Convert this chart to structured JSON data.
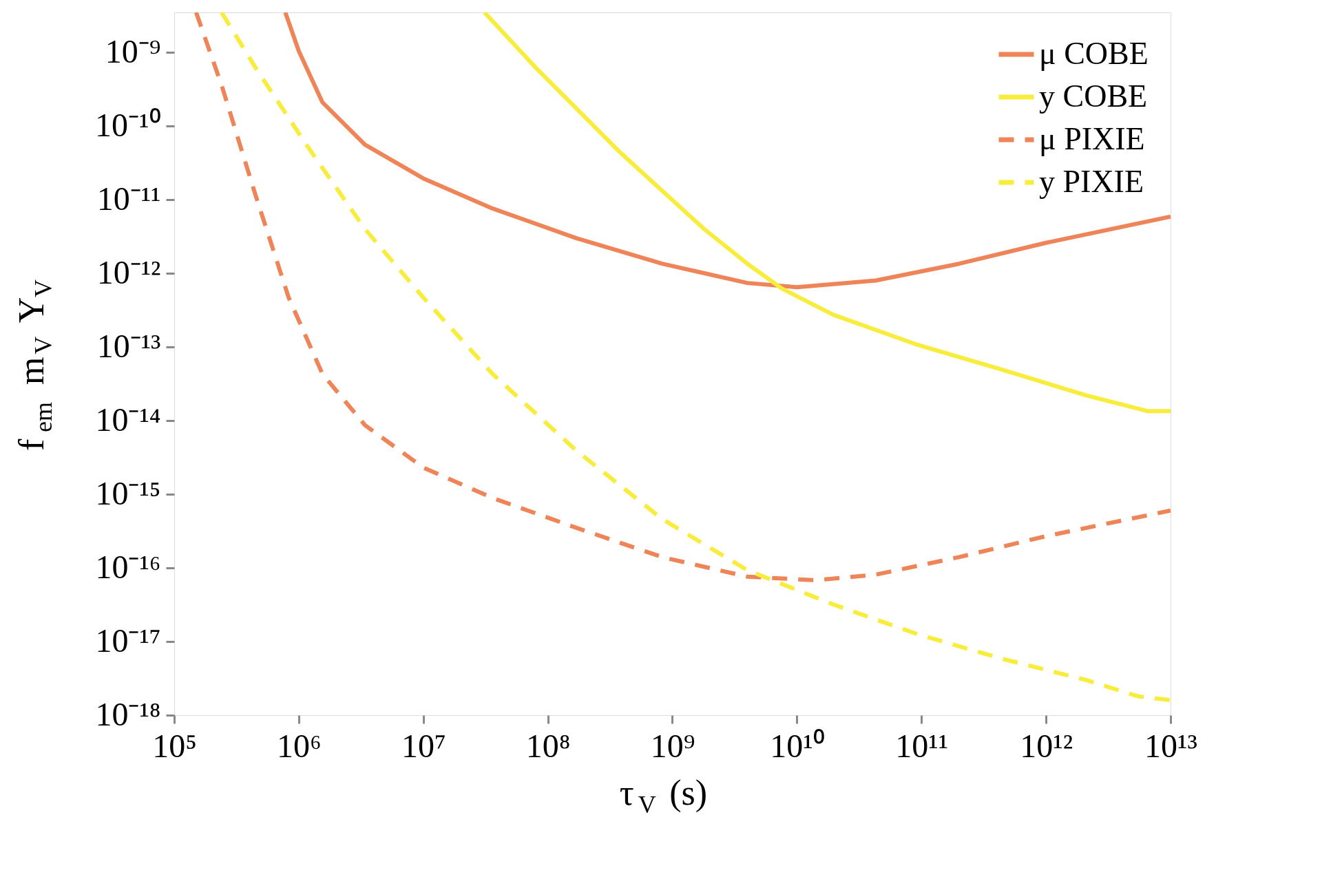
{
  "chart_data": {
    "type": "line",
    "xlabel": "τ$_{V}$ (s)",
    "ylabel": "f$_{em}$ m$_{V}$ Y$_{V}$",
    "log": "xy",
    "grid": false,
    "legend": "top right",
    "marker": "none",
    "xlim": [
      100000.0,
      10000000000000.0
    ],
    "ylim": [
      1e-18,
      3.5e-09
    ],
    "xticks": [
      {
        "value": 100000.0,
        "label": "10⁵"
      },
      {
        "value": 1000000.0,
        "label": "10⁶"
      },
      {
        "value": 10000000.0,
        "label": "10⁷"
      },
      {
        "value": 100000000.0,
        "label": "10⁸"
      },
      {
        "value": 1000000000.0,
        "label": "10⁹"
      },
      {
        "value": 10000000000.0,
        "label": "10¹⁰"
      },
      {
        "value": 100000000000.0,
        "label": "10¹¹"
      },
      {
        "value": 1000000000000.0,
        "label": "10¹²"
      },
      {
        "value": 10000000000000.0,
        "label": "10¹³"
      }
    ],
    "yticks": [
      {
        "value": 1e-18,
        "label": "10⁻¹⁸"
      },
      {
        "value": 1e-17,
        "label": "10⁻¹⁷"
      },
      {
        "value": 1e-16,
        "label": "10⁻¹⁶"
      },
      {
        "value": 1e-15,
        "label": "10⁻¹⁵"
      },
      {
        "value": 1e-14,
        "label": "10⁻¹⁴"
      },
      {
        "value": 1e-13,
        "label": "10⁻¹³"
      },
      {
        "value": 1e-12,
        "label": "10⁻¹²"
      },
      {
        "value": 1e-11,
        "label": "10⁻¹¹"
      },
      {
        "value": 1e-10,
        "label": "10⁻¹⁰"
      },
      {
        "value": 1e-09,
        "label": "10⁻⁹"
      }
    ],
    "series": [
      {
        "name": "μ COBE",
        "color": "#ee8458",
        "line_style": "solid",
        "x": [
          780000.0,
          1000000.0,
          1550000.0,
          3400000.0,
          10000000.0,
          36000000.0,
          170000000.0,
          830000000.0,
          4000000000.0,
          10000000000.0,
          43000000000.0,
          200000000000.0,
          1000000000000.0,
          10000000000000.0
        ],
        "values": [
          3.5e-09,
          1.05e-09,
          2.1e-10,
          5.6e-11,
          1.95e-11,
          7.6e-12,
          3e-12,
          1.35e-12,
          7.4e-13,
          6.5e-13,
          8e-13,
          1.35e-12,
          2.6e-12,
          5.9e-12
        ]
      },
      {
        "name": "y COBE",
        "color": "#f8ec3c",
        "line_style": "solid",
        "x": [
          31000000.0,
          80000000.0,
          380000000.0,
          1800000000.0,
          4000000000.0,
          7600000000.0,
          19500000000.0,
          93000000000.0,
          450000000000.0,
          2100000000000.0,
          6500000000000.0,
          10000000000000.0
        ],
        "values": [
          3.5e-09,
          6.2e-10,
          4.4e-11,
          4e-12,
          1.35e-12,
          6.2e-13,
          2.75e-13,
          1.07e-13,
          4.9e-14,
          2.2e-14,
          1.35e-14,
          1.35e-14
        ]
      },
      {
        "name": "μ PIXIE",
        "color": "#ee8458",
        "line_style": "dashed",
        "x": [
          150000.0,
          240000.0,
          450000.0,
          830000.0,
          1550000.0,
          3400000.0,
          10000000.0,
          36000000.0,
          170000000.0,
          830000000.0,
          4000000000.0,
          14000000000.0,
          43000000000.0,
          200000000000.0,
          1000000000000.0,
          10000000000000.0
        ],
        "values": [
          3.5e-09,
          3.6e-10,
          1.15e-11,
          4.7e-13,
          4.3e-14,
          8.7e-15,
          2.3e-15,
          8.9e-16,
          3.5e-16,
          1.4e-16,
          7.6e-17,
          6.8e-17,
          8.1e-17,
          1.4e-16,
          2.7e-16,
          6e-16
        ]
      },
      {
        "name": "y PIXIE",
        "color": "#f8ec3c",
        "line_style": "dashed",
        "x": [
          240000.0,
          450000.0,
          1150000.0,
          3400000.0,
          10000000.0,
          36000000.0,
          170000000.0,
          830000000.0,
          4000000000.0,
          19500000000.0,
          93000000000.0,
          450000000000.0,
          2100000000000.0,
          5500000000000.0,
          10000000000000.0
        ],
        "values": [
          3.5e-09,
          6.2e-10,
          5.6e-11,
          4e-12,
          4.7e-13,
          4.3e-14,
          3.9e-15,
          4.6e-16,
          9.3e-17,
          3.2e-17,
          1.26e-17,
          5.8e-18,
          3e-18,
          1.8e-18,
          1.6e-18
        ]
      }
    ]
  }
}
